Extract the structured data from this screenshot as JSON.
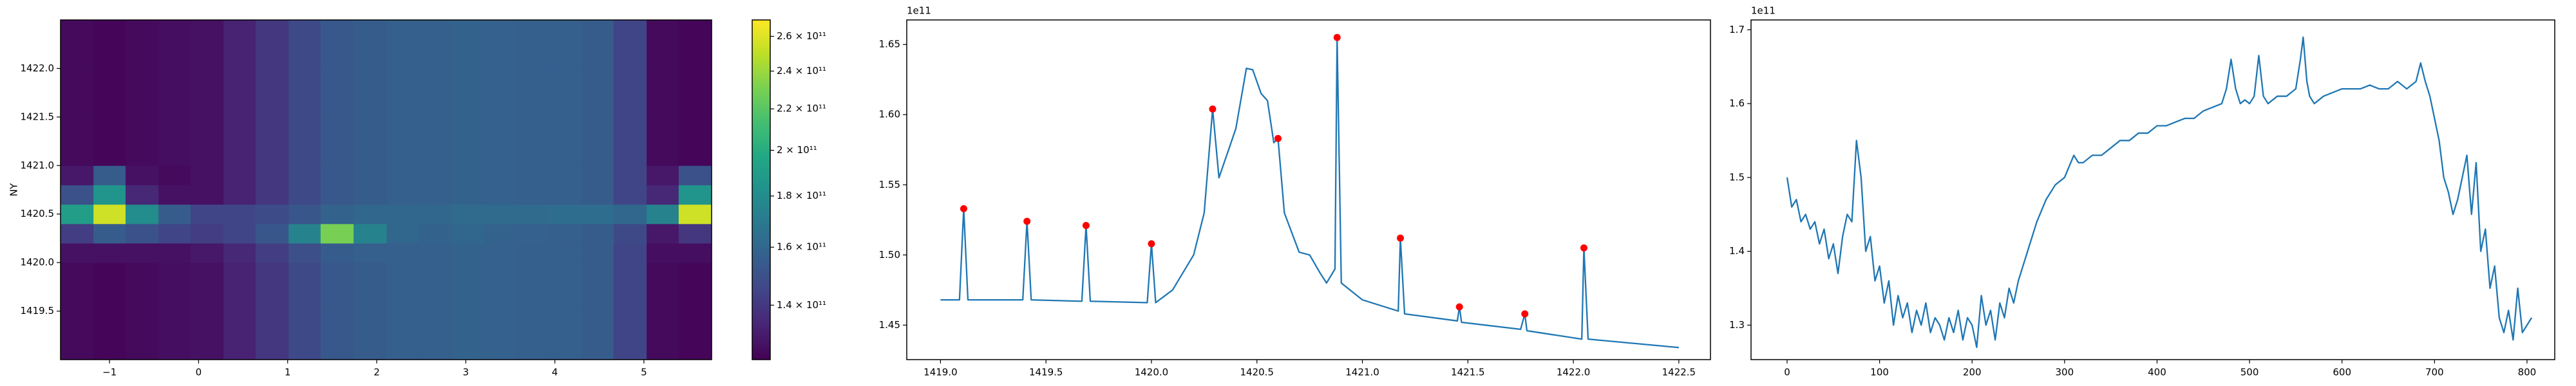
{
  "chart_data": [
    {
      "type": "heatmap",
      "cmap": "viridis",
      "cscale": "log",
      "ylabel": "NY",
      "x": [
        -1.55,
        -1.18,
        -0.82,
        -0.45,
        -0.09,
        0.28,
        0.64,
        1.01,
        1.37,
        1.74,
        2.11,
        2.47,
        2.84,
        3.2,
        3.57,
        3.93,
        4.3,
        4.66,
        5.03,
        5.39,
        5.76
      ],
      "y": [
        1419.0,
        1419.5,
        1420.0,
        1420.2,
        1420.4,
        1420.6,
        1420.8,
        1421.0,
        1421.5,
        1422.0,
        1422.5
      ],
      "values": [
        [
          126000000000.0,
          125000000000.0,
          126000000000.0,
          127000000000.0,
          128000000000.0,
          133000000000.0,
          140000000000.0,
          147000000000.0,
          153000000000.0,
          155000000000.0,
          156000000000.0,
          156000000000.0,
          158000000000.0,
          157000000000.0,
          156000000000.0,
          156000000000.0,
          155000000000.0,
          145000000000.0,
          126000000000.0,
          125000000000.0
        ],
        [
          126000000000.0,
          125000000000.0,
          126000000000.0,
          127000000000.0,
          128000000000.0,
          133000000000.0,
          140000000000.0,
          147000000000.0,
          153000000000.0,
          155000000000.0,
          156000000000.0,
          156000000000.0,
          158000000000.0,
          157000000000.0,
          156000000000.0,
          156000000000.0,
          155000000000.0,
          145000000000.0,
          126000000000.0,
          125000000000.0
        ],
        [
          128000000000.0,
          128000000000.0,
          128000000000.0,
          128000000000.0,
          130000000000.0,
          135000000000.0,
          142000000000.0,
          149000000000.0,
          155000000000.0,
          156000000000.0,
          156000000000.0,
          156000000000.0,
          158000000000.0,
          157000000000.0,
          156000000000.0,
          156000000000.0,
          155000000000.0,
          145000000000.0,
          127000000000.0,
          127000000000.0
        ],
        [
          142000000000.0,
          155000000000.0,
          150000000000.0,
          145000000000.0,
          142000000000.0,
          145000000000.0,
          152000000000.0,
          175000000000.0,
          230000000000.0,
          175000000000.0,
          160000000000.0,
          158000000000.0,
          160000000000.0,
          158000000000.0,
          157000000000.0,
          156000000000.0,
          155000000000.0,
          147000000000.0,
          130000000000.0,
          140000000000.0
        ],
        [
          190000000000.0,
          255000000000.0,
          180000000000.0,
          155000000000.0,
          145000000000.0,
          145000000000.0,
          148000000000.0,
          152000000000.0,
          158000000000.0,
          160000000000.0,
          160000000000.0,
          160000000000.0,
          162000000000.0,
          162000000000.0,
          162000000000.0,
          163000000000.0,
          163000000000.0,
          160000000000.0,
          175000000000.0,
          255000000000.0
        ],
        [
          150000000000.0,
          185000000000.0,
          135000000000.0,
          128000000000.0,
          128000000000.0,
          133000000000.0,
          140000000000.0,
          147000000000.0,
          153000000000.0,
          155000000000.0,
          156000000000.0,
          156000000000.0,
          158000000000.0,
          157000000000.0,
          156000000000.0,
          156000000000.0,
          155000000000.0,
          145000000000.0,
          135000000000.0,
          185000000000.0
        ],
        [
          130000000000.0,
          155000000000.0,
          128000000000.0,
          126000000000.0,
          128000000000.0,
          133000000000.0,
          140000000000.0,
          147000000000.0,
          153000000000.0,
          155000000000.0,
          156000000000.0,
          156000000000.0,
          158000000000.0,
          157000000000.0,
          156000000000.0,
          156000000000.0,
          155000000000.0,
          145000000000.0,
          130000000000.0,
          150000000000.0
        ],
        [
          126000000000.0,
          125000000000.0,
          126000000000.0,
          127000000000.0,
          128000000000.0,
          133000000000.0,
          140000000000.0,
          147000000000.0,
          153000000000.0,
          155000000000.0,
          156000000000.0,
          156000000000.0,
          158000000000.0,
          157000000000.0,
          156000000000.0,
          156000000000.0,
          155000000000.0,
          145000000000.0,
          126000000000.0,
          125000000000.0
        ],
        [
          126000000000.0,
          125000000000.0,
          126000000000.0,
          127000000000.0,
          128000000000.0,
          133000000000.0,
          140000000000.0,
          147000000000.0,
          153000000000.0,
          155000000000.0,
          156000000000.0,
          156000000000.0,
          158000000000.0,
          157000000000.0,
          156000000000.0,
          156000000000.0,
          155000000000.0,
          145000000000.0,
          126000000000.0,
          125000000000.0
        ],
        [
          126000000000.0,
          125000000000.0,
          126000000000.0,
          127000000000.0,
          128000000000.0,
          133000000000.0,
          140000000000.0,
          147000000000.0,
          153000000000.0,
          155000000000.0,
          156000000000.0,
          156000000000.0,
          158000000000.0,
          157000000000.0,
          156000000000.0,
          156000000000.0,
          155000000000.0,
          145000000000.0,
          126000000000.0,
          125000000000.0
        ]
      ],
      "xlim": [
        -1.55,
        5.76
      ],
      "ylim": [
        1419.0,
        1422.5
      ],
      "xticks": [
        {
          "value": -1,
          "label": "−1"
        },
        0,
        1,
        2,
        3,
        4,
        5
      ],
      "yticks": [
        1419.5,
        {
          "value": 1420,
          "label": "1420.0"
        },
        1420.5,
        {
          "value": 1421,
          "label": "1421.0"
        },
        1421.5,
        {
          "value": 1422,
          "label": "1422.0"
        }
      ],
      "clim": [
        123500000000.0,
        270000000000.0
      ],
      "cticks": [
        {
          "value": 140000000000.0,
          "label": "1.4 × 10¹¹"
        },
        {
          "value": 160000000000.0,
          "label": "1.6 × 10¹¹"
        },
        {
          "value": 180000000000.0,
          "label": "1.8 × 10¹¹"
        },
        {
          "value": 200000000000.0,
          "label": "2 × 10¹¹"
        },
        {
          "value": 220000000000.0,
          "label": "2.2 × 10¹¹"
        },
        {
          "value": 240000000000.0,
          "label": "2.4 × 10¹¹"
        },
        {
          "value": 260000000000.0,
          "label": "2.6 × 10¹¹"
        }
      ]
    },
    {
      "type": "line",
      "y_offset": "1e11",
      "xlim": [
        1418.84,
        1422.65
      ],
      "ylim": [
        1.4254,
        1.6675
      ],
      "xticks": [
        {
          "value": 1419,
          "label": "1419.0"
        },
        1419.5,
        {
          "value": 1420,
          "label": "1420.0"
        },
        1420.5,
        {
          "value": 1421,
          "label": "1421.0"
        },
        1421.5,
        {
          "value": 1422,
          "label": "1422.0"
        },
        1422.5
      ],
      "yticks": [
        1.45,
        {
          "value": 1.5,
          "label": "1.50"
        },
        1.55,
        {
          "value": 1.6,
          "label": "1.60"
        },
        1.65
      ],
      "series": [
        {
          "color": "#1f77b4",
          "x": [
            1419.0,
            1419.09,
            1419.11,
            1419.13,
            1419.39,
            1419.41,
            1419.43,
            1419.67,
            1419.69,
            1419.71,
            1419.98,
            1420.0,
            1420.02,
            1420.1,
            1420.2,
            1420.25,
            1420.29,
            1420.32,
            1420.4,
            1420.45,
            1420.48,
            1420.52,
            1420.55,
            1420.58,
            1420.6,
            1420.63,
            1420.7,
            1420.75,
            1420.8,
            1420.83,
            1420.87,
            1420.88,
            1420.9,
            1421.0,
            1421.17,
            1421.18,
            1421.2,
            1421.45,
            1421.46,
            1421.47,
            1421.75,
            1421.77,
            1421.78,
            1422.04,
            1422.05,
            1422.07,
            1422.5
          ],
          "values": [
            1.468,
            1.468,
            1.533,
            1.468,
            1.468,
            1.524,
            1.468,
            1.467,
            1.521,
            1.467,
            1.466,
            1.508,
            1.466,
            1.475,
            1.5,
            1.53,
            1.604,
            1.555,
            1.59,
            1.633,
            1.632,
            1.615,
            1.61,
            1.58,
            1.583,
            1.53,
            1.502,
            1.5,
            1.487,
            1.48,
            1.49,
            1.655,
            1.48,
            1.468,
            1.46,
            1.512,
            1.458,
            1.453,
            1.463,
            1.452,
            1.447,
            1.458,
            1.446,
            1.44,
            1.505,
            1.44,
            1.434
          ]
        },
        {
          "color": "#ff0000",
          "marker": "o",
          "x": [
            1419.11,
            1419.41,
            1419.69,
            1420.0,
            1420.29,
            1420.6,
            1420.88,
            1421.18,
            1421.46,
            1421.77,
            1422.05
          ],
          "values": [
            1.533,
            1.524,
            1.521,
            1.508,
            1.604,
            1.583,
            1.655,
            1.512,
            1.463,
            1.458,
            1.505
          ]
        }
      ]
    },
    {
      "type": "line",
      "y_offset": "1e11",
      "xlim": [
        -39,
        830
      ],
      "ylim": [
        1.2533,
        1.7133
      ],
      "xticks": [
        0,
        100,
        200,
        300,
        400,
        500,
        600,
        700,
        800
      ],
      "yticks": [
        1.3,
        1.4,
        1.5,
        1.6,
        1.7
      ],
      "series": [
        {
          "color": "#1f77b4",
          "x": [
            0,
            5,
            10,
            15,
            20,
            25,
            30,
            35,
            40,
            45,
            50,
            55,
            60,
            65,
            70,
            75,
            80,
            85,
            90,
            95,
            100,
            105,
            110,
            115,
            120,
            125,
            130,
            135,
            140,
            145,
            150,
            155,
            160,
            165,
            170,
            175,
            180,
            185,
            190,
            195,
            200,
            205,
            210,
            215,
            220,
            225,
            230,
            235,
            240,
            245,
            250,
            255,
            260,
            270,
            280,
            290,
            300,
            310,
            315,
            320,
            330,
            340,
            350,
            360,
            370,
            380,
            390,
            400,
            410,
            420,
            430,
            440,
            450,
            460,
            470,
            475,
            480,
            485,
            490,
            495,
            500,
            505,
            510,
            515,
            520,
            530,
            540,
            550,
            555,
            558,
            562,
            565,
            570,
            580,
            590,
            600,
            610,
            620,
            630,
            640,
            650,
            660,
            670,
            680,
            685,
            690,
            695,
            700,
            705,
            710,
            715,
            720,
            725,
            730,
            735,
            740,
            745,
            750,
            755,
            760,
            765,
            770,
            775,
            780,
            785,
            790,
            795,
            800,
            805
          ],
          "values": [
            1.5,
            1.46,
            1.47,
            1.44,
            1.45,
            1.43,
            1.44,
            1.41,
            1.43,
            1.39,
            1.41,
            1.37,
            1.42,
            1.45,
            1.44,
            1.55,
            1.5,
            1.4,
            1.42,
            1.36,
            1.38,
            1.33,
            1.36,
            1.3,
            1.34,
            1.31,
            1.33,
            1.29,
            1.32,
            1.3,
            1.33,
            1.29,
            1.31,
            1.3,
            1.28,
            1.31,
            1.29,
            1.32,
            1.28,
            1.31,
            1.3,
            1.27,
            1.34,
            1.3,
            1.32,
            1.28,
            1.33,
            1.31,
            1.35,
            1.33,
            1.36,
            1.38,
            1.4,
            1.44,
            1.47,
            1.49,
            1.5,
            1.53,
            1.52,
            1.52,
            1.53,
            1.53,
            1.54,
            1.55,
            1.55,
            1.56,
            1.56,
            1.57,
            1.57,
            1.575,
            1.58,
            1.58,
            1.59,
            1.595,
            1.6,
            1.62,
            1.66,
            1.62,
            1.6,
            1.605,
            1.6,
            1.61,
            1.665,
            1.61,
            1.6,
            1.61,
            1.61,
            1.62,
            1.66,
            1.69,
            1.63,
            1.61,
            1.6,
            1.61,
            1.615,
            1.62,
            1.62,
            1.62,
            1.625,
            1.62,
            1.62,
            1.63,
            1.62,
            1.63,
            1.655,
            1.63,
            1.61,
            1.58,
            1.55,
            1.5,
            1.48,
            1.45,
            1.47,
            1.5,
            1.53,
            1.45,
            1.52,
            1.4,
            1.43,
            1.35,
            1.38,
            1.31,
            1.29,
            1.32,
            1.28,
            1.35,
            1.29,
            1.3,
            1.31
          ]
        }
      ]
    }
  ]
}
